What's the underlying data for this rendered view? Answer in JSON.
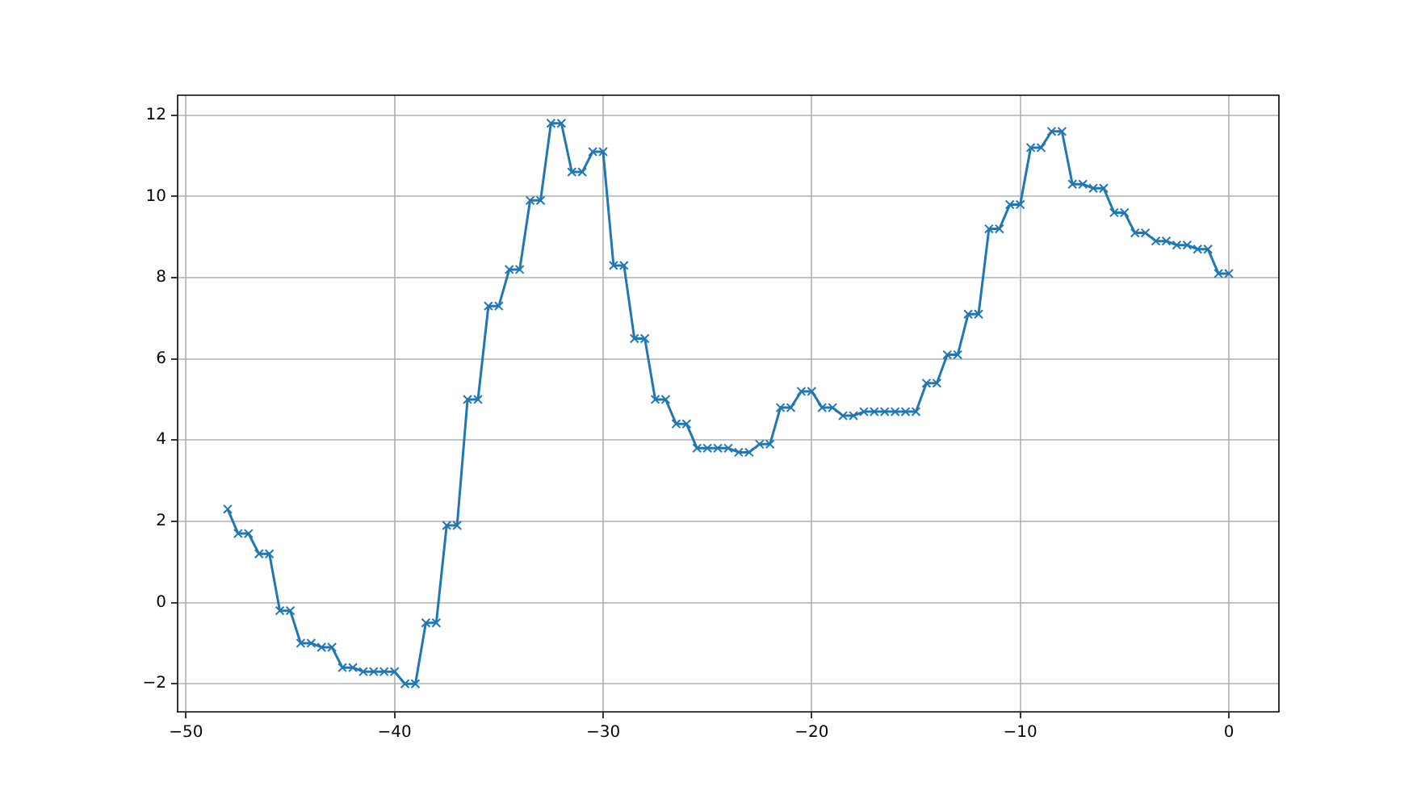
{
  "chart_data": {
    "type": "line",
    "color": "#1f77b4",
    "marker": "cross",
    "grid": true,
    "x": [
      -48,
      -47.5,
      -47,
      -46.5,
      -46,
      -45.5,
      -45,
      -44.5,
      -44,
      -43.5,
      -43,
      -42.5,
      -42,
      -41.5,
      -41,
      -40.5,
      -40,
      -39.5,
      -39,
      -38.5,
      -38,
      -37.5,
      -37,
      -36.5,
      -36,
      -35.5,
      -35,
      -34.5,
      -34,
      -33.5,
      -33,
      -32.5,
      -32,
      -31.5,
      -31,
      -30.5,
      -30,
      -29.5,
      -29,
      -28.5,
      -28,
      -27.5,
      -27,
      -26.5,
      -26,
      -25.5,
      -25,
      -24.5,
      -24,
      -23.5,
      -23,
      -22.5,
      -22,
      -21.5,
      -21,
      -20.5,
      -20,
      -19.5,
      -19,
      -18.5,
      -18,
      -17.5,
      -17,
      -16.5,
      -16,
      -15.5,
      -15,
      -14.5,
      -14,
      -13.5,
      -13,
      -12.5,
      -12,
      -11.5,
      -11,
      -10.5,
      -10,
      -9.5,
      -9,
      -8.5,
      -8,
      -7.5,
      -7,
      -6.5,
      -6,
      -5.5,
      -5,
      -4.5,
      -4,
      -3.5,
      -3,
      -2.5,
      -2,
      -1.5,
      -1,
      -0.5,
      0
    ],
    "values": [
      2.3,
      1.7,
      1.7,
      1.2,
      1.2,
      -0.2,
      -0.2,
      -1.0,
      -1.0,
      -1.1,
      -1.1,
      -1.6,
      -1.6,
      -1.7,
      -1.7,
      -1.7,
      -1.7,
      -2.0,
      -2.0,
      -0.5,
      -0.5,
      1.9,
      1.9,
      5.0,
      5.0,
      7.3,
      7.3,
      8.2,
      8.2,
      9.9,
      9.9,
      11.8,
      11.8,
      10.6,
      10.6,
      11.1,
      11.1,
      8.3,
      8.3,
      6.5,
      6.5,
      5.0,
      5.0,
      4.4,
      4.4,
      3.8,
      3.8,
      3.8,
      3.8,
      3.7,
      3.7,
      3.9,
      3.9,
      4.8,
      4.8,
      5.2,
      5.2,
      4.8,
      4.8,
      4.6,
      4.6,
      4.7,
      4.7,
      4.7,
      4.7,
      4.7,
      4.7,
      5.4,
      5.4,
      6.1,
      6.1,
      7.1,
      7.1,
      9.2,
      9.2,
      9.8,
      9.8,
      11.2,
      11.2,
      11.6,
      11.6,
      10.3,
      10.3,
      10.2,
      10.2,
      9.6,
      9.6,
      9.1,
      9.1,
      8.9,
      8.9,
      8.8,
      8.8,
      8.7,
      8.7,
      8.1,
      8.1
    ],
    "xlim": [
      -50.4,
      2.4
    ],
    "ylim": [
      -2.69,
      12.49
    ],
    "xticks": [
      {
        "value": -50,
        "label": "−50"
      },
      {
        "value": -40,
        "label": "−40"
      },
      {
        "value": -30,
        "label": "−30"
      },
      {
        "value": -20,
        "label": "−20"
      },
      {
        "value": -10,
        "label": "−10"
      },
      0
    ],
    "yticks": [
      {
        "value": -2,
        "label": "−2"
      },
      0,
      2,
      4,
      6,
      8,
      10,
      12
    ]
  }
}
